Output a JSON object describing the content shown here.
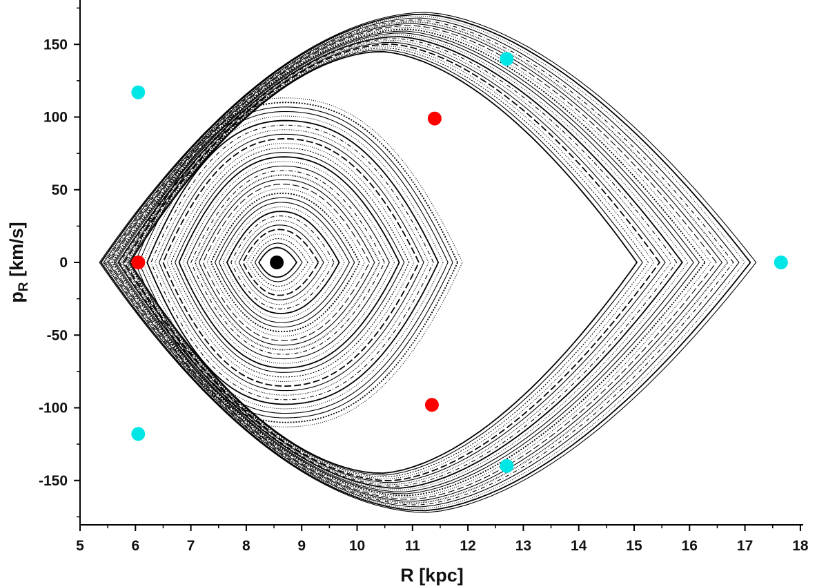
{
  "chart_data": {
    "type": "scatter",
    "title": "",
    "xlabel": "R [kpc]",
    "ylabel": "p_R [km/s]",
    "ylabel_main": "p",
    "ylabel_sub": "R",
    "ylabel_unit": " [km/s]",
    "xlim": [
      5,
      18
    ],
    "ylim": [
      -180,
      180
    ],
    "x_ticks": [
      5,
      6,
      7,
      8,
      9,
      10,
      11,
      12,
      13,
      14,
      15,
      16,
      17,
      18
    ],
    "y_ticks": [
      -150,
      -100,
      -50,
      0,
      50,
      100,
      150
    ],
    "x_tick_labels": [
      "5",
      "6",
      "7",
      "8",
      "9",
      "10",
      "11",
      "12",
      "13",
      "14",
      "15",
      "16",
      "17",
      "18"
    ],
    "y_tick_labels": [
      "-150",
      "-100",
      "-50",
      "0",
      "50",
      "100",
      "150"
    ],
    "grid": false,
    "series": [
      {
        "marker": "black",
        "color": "#000000",
        "points": [
          [
            8.55,
            0
          ]
        ]
      },
      {
        "marker": "red",
        "color": "#ff0000",
        "points": [
          [
            6.05,
            0
          ],
          [
            11.4,
            99
          ],
          [
            11.35,
            -98
          ]
        ]
      },
      {
        "marker": "cyan",
        "color": "#00e5e5",
        "points": [
          [
            6.05,
            117
          ],
          [
            6.05,
            -118
          ],
          [
            12.7,
            140
          ],
          [
            12.7,
            -140
          ],
          [
            17.65,
            0
          ]
        ]
      }
    ],
    "invariant_curves": {
      "color": "#000000",
      "inner_family": {
        "center": [
          8.55,
          0
        ],
        "rmin": [
          8.3,
          5.85
        ],
        "rmax": [
          8.8,
          11.9
        ],
        "pmax": [
          7,
          113
        ]
      },
      "outer_family": {
        "rmin": [
          5.9,
          5.35
        ],
        "rmax": [
          15.05,
          17.2
        ],
        "pmax": [
          145,
          172
        ]
      }
    }
  }
}
